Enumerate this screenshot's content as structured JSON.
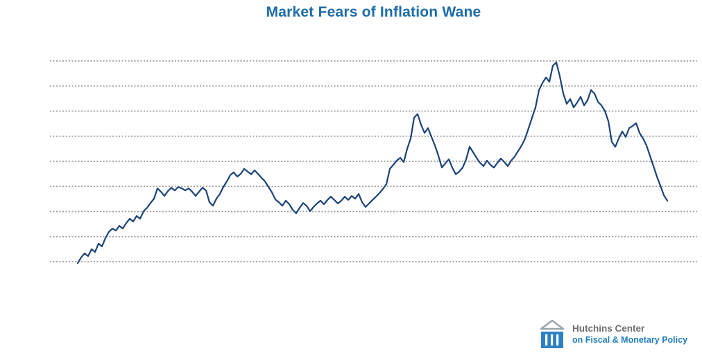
{
  "chart_data": {
    "type": "line",
    "title": "Market Fears of Inflation Wane",
    "xlabel": "",
    "ylabel": "",
    "legend": "none",
    "grid": "9 horizontal dotted gray gridlines, evenly spaced",
    "axis_tick_labels_visible": false,
    "gridline_count": 9,
    "y_units": "gridline units (0 = bottom gridline, 8 = top gridline); numeric axis tick labels are not visible in the screenshot",
    "ylim": [
      -0.3,
      8.3
    ],
    "series": [
      {
        "name": "market-inflation-expectations",
        "values": [
          -0.06,
          0.17,
          0.33,
          0.22,
          0.5,
          0.39,
          0.72,
          0.61,
          0.94,
          1.19,
          1.32,
          1.24,
          1.43,
          1.32,
          1.54,
          1.71,
          1.6,
          1.82,
          1.71,
          2.01,
          2.15,
          2.34,
          2.51,
          2.92,
          2.79,
          2.62,
          2.81,
          2.95,
          2.84,
          2.98,
          2.92,
          2.84,
          2.92,
          2.79,
          2.62,
          2.79,
          2.95,
          2.84,
          2.37,
          2.23,
          2.51,
          2.7,
          2.98,
          3.2,
          3.45,
          3.56,
          3.39,
          3.5,
          3.7,
          3.59,
          3.48,
          3.64,
          3.5,
          3.34,
          3.2,
          2.98,
          2.76,
          2.48,
          2.37,
          2.23,
          2.43,
          2.29,
          2.07,
          1.93,
          2.15,
          2.34,
          2.23,
          2.01,
          2.18,
          2.32,
          2.43,
          2.29,
          2.46,
          2.59,
          2.46,
          2.32,
          2.43,
          2.59,
          2.46,
          2.62,
          2.51,
          2.7,
          2.37,
          2.18,
          2.32,
          2.46,
          2.59,
          2.73,
          2.9,
          3.09,
          3.7,
          3.86,
          4.03,
          4.14,
          3.97,
          4.5,
          4.91,
          5.74,
          5.88,
          5.46,
          5.13,
          5.32,
          4.97,
          4.63,
          4.22,
          3.75,
          3.92,
          4.08,
          3.75,
          3.48,
          3.59,
          3.75,
          4.08,
          4.58,
          4.36,
          4.14,
          3.94,
          3.81,
          4.03,
          3.86,
          3.75,
          3.94,
          4.11,
          3.97,
          3.81,
          4.03,
          4.19,
          4.41,
          4.63,
          4.91,
          5.32,
          5.74,
          6.15,
          6.84,
          7.12,
          7.34,
          7.17,
          7.81,
          7.94,
          7.39,
          6.7,
          6.29,
          6.48,
          6.15,
          6.34,
          6.57,
          6.23,
          6.43,
          6.84,
          6.7,
          6.37,
          6.23,
          6.01,
          5.6,
          4.77,
          4.58,
          4.91,
          5.19,
          4.97,
          5.32,
          5.41,
          5.52,
          5.13,
          4.91,
          4.63,
          4.22,
          3.81,
          3.39,
          3.03,
          2.65,
          2.43
        ]
      }
    ]
  },
  "logo": {
    "name": "Hutchins Center",
    "subtitle": "on Fiscal & Monetary Policy"
  },
  "colors": {
    "title": "#1b6ca8",
    "line": "#1a4379",
    "gridline": "#999999",
    "logo_name": "#6d6e71",
    "logo_subtitle": "#1f7cc0",
    "logo_icon_roof": "#98a4ae",
    "logo_icon_base": "#2f80c3"
  }
}
